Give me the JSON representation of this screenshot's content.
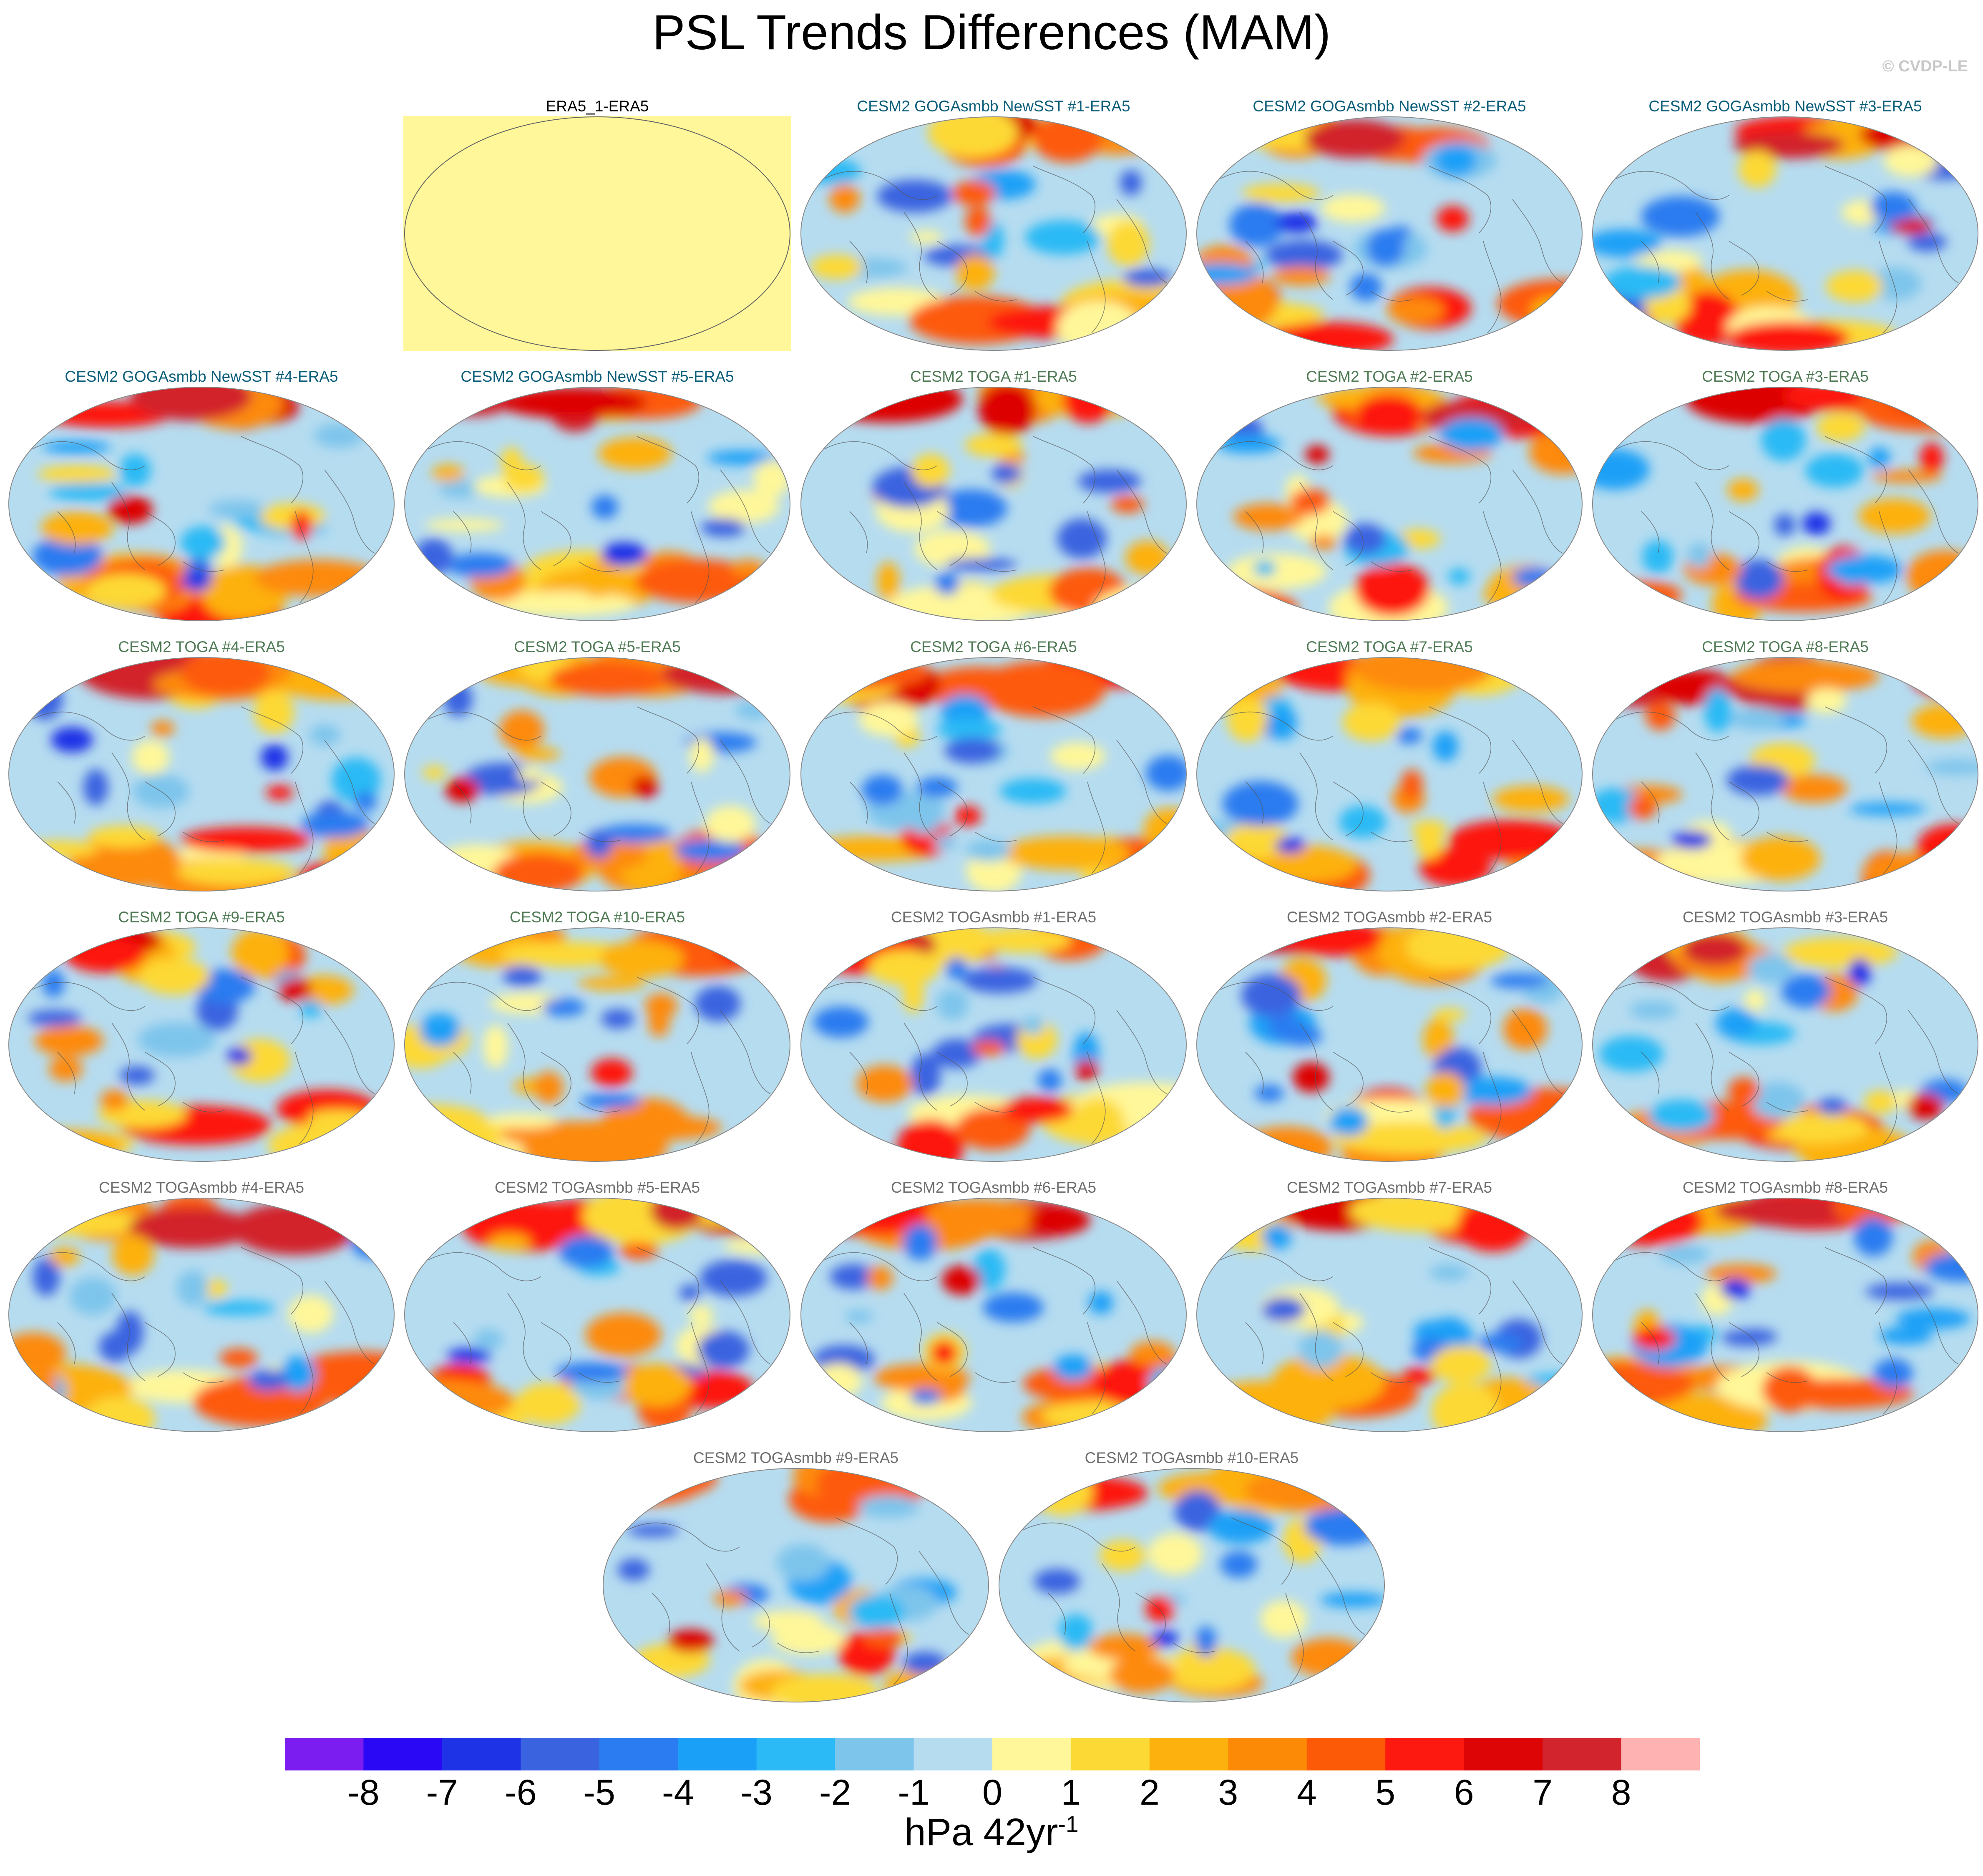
{
  "title": "PSL Trends Differences (MAM)",
  "credit": "© CVDP-LE",
  "colors": {
    "title_goga": "#0b5e7a",
    "title_toga": "#4f7a55",
    "title_togambb": "#6e6e6e",
    "title_obs": "#000000",
    "obs_fill": "#fff799"
  },
  "chart_data": {
    "type": "heatmap",
    "projection": "Robinson, Pacific-centred",
    "panels": [
      {
        "title": "ERA5_1-ERA5",
        "group": "obs",
        "uniform_value": 0
      },
      {
        "title": "CESM2 GOGAsmbb NewSST #1-ERA5",
        "group": "goga"
      },
      {
        "title": "CESM2 GOGAsmbb NewSST #2-ERA5",
        "group": "goga"
      },
      {
        "title": "CESM2 GOGAsmbb NewSST #3-ERA5",
        "group": "goga"
      },
      {
        "title": "CESM2 GOGAsmbb NewSST #4-ERA5",
        "group": "goga"
      },
      {
        "title": "CESM2 GOGAsmbb NewSST #5-ERA5",
        "group": "goga"
      },
      {
        "title": "CESM2 TOGA #1-ERA5",
        "group": "toga"
      },
      {
        "title": "CESM2 TOGA #2-ERA5",
        "group": "toga"
      },
      {
        "title": "CESM2 TOGA #3-ERA5",
        "group": "toga"
      },
      {
        "title": "CESM2 TOGA #4-ERA5",
        "group": "toga"
      },
      {
        "title": "CESM2 TOGA #5-ERA5",
        "group": "toga"
      },
      {
        "title": "CESM2 TOGA #6-ERA5",
        "group": "toga"
      },
      {
        "title": "CESM2 TOGA #7-ERA5",
        "group": "toga"
      },
      {
        "title": "CESM2 TOGA #8-ERA5",
        "group": "toga"
      },
      {
        "title": "CESM2 TOGA #9-ERA5",
        "group": "toga"
      },
      {
        "title": "CESM2 TOGA #10-ERA5",
        "group": "toga"
      },
      {
        "title": "CESM2 TOGAsmbb #1-ERA5",
        "group": "togambb"
      },
      {
        "title": "CESM2 TOGAsmbb #2-ERA5",
        "group": "togambb"
      },
      {
        "title": "CESM2 TOGAsmbb #3-ERA5",
        "group": "togambb"
      },
      {
        "title": "CESM2 TOGAsmbb #4-ERA5",
        "group": "togambb"
      },
      {
        "title": "CESM2 TOGAsmbb #5-ERA5",
        "group": "togambb"
      },
      {
        "title": "CESM2 TOGAsmbb #6-ERA5",
        "group": "togambb"
      },
      {
        "title": "CESM2 TOGAsmbb #7-ERA5",
        "group": "togambb"
      },
      {
        "title": "CESM2 TOGAsmbb #8-ERA5",
        "group": "togambb"
      },
      {
        "title": "CESM2 TOGAsmbb #9-ERA5",
        "group": "togambb"
      },
      {
        "title": "CESM2 TOGAsmbb #10-ERA5",
        "group": "togambb"
      }
    ],
    "colorbar": {
      "labels": [
        "-8",
        "-7",
        "-6",
        "-5",
        "-4",
        "-3",
        "-2",
        "-1",
        "0",
        "1",
        "2",
        "3",
        "4",
        "5",
        "6",
        "7",
        "8"
      ],
      "colors": [
        "#7b1df0",
        "#2a08f5",
        "#1e32e6",
        "#3a63e0",
        "#2a7cf0",
        "#1aa0f7",
        "#2bbaf5",
        "#7ec5ec",
        "#b6dcf0",
        "#fff799",
        "#fdd935",
        "#fdb10e",
        "#fd8a07",
        "#fd5a08",
        "#fd1810",
        "#dd0506",
        "#d2242c",
        "#ffb2b2"
      ],
      "units": "hPa 42yr",
      "units_exponent": "-1"
    }
  }
}
